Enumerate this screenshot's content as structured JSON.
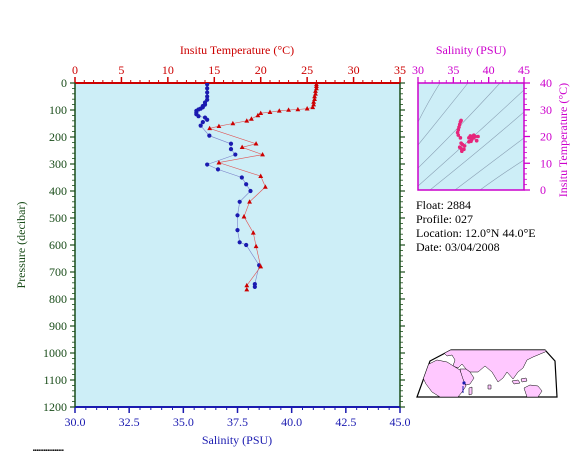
{
  "colors": {
    "temperature": "#cc0000",
    "salinity_main": "#1a1ab0",
    "salinity_ts": "#cc00cc",
    "pressure": "#1a4d1a",
    "plot_bg": "#cdeef7",
    "ts_points": "#e6257a",
    "land": "#ffc8ff"
  },
  "main_chart": {
    "temp_axis_label": "Insitu Temperature (°C)",
    "temp_ticks": [
      "0",
      "5",
      "10",
      "15",
      "20",
      "25",
      "30",
      "35"
    ],
    "sal_axis_label": "Salinity (PSU)",
    "sal_ticks": [
      "30.0",
      "32.5",
      "35.0",
      "37.5",
      "40.0",
      "42.5",
      "45.0"
    ],
    "pres_axis_label": "Pressure (decibar)",
    "pres_ticks": [
      "0",
      "100",
      "200",
      "300",
      "400",
      "500",
      "600",
      "700",
      "800",
      "900",
      "1000",
      "1100",
      "1200"
    ]
  },
  "ts_chart": {
    "sal_axis_label": "Salinity (PSU)",
    "sal_ticks": [
      "30",
      "35",
      "40",
      "45"
    ],
    "temp_axis_label": "Insitu Temperature (°C)",
    "temp_ticks": [
      "0",
      "10",
      "20",
      "30",
      "40"
    ]
  },
  "info": {
    "float_line": "Float:  2884",
    "profile_line": "Profile:  027",
    "location_line": "Location:  12.0°N  44.0°E",
    "date_line": "Date:  03/04/2008"
  },
  "chart_data": [
    {
      "type": "line",
      "name": "temperature-profile",
      "x_axis": "Insitu Temperature (°C)",
      "y_axis": "Pressure (decibar)",
      "xlim": [
        0,
        35
      ],
      "ylim": [
        1200,
        0
      ],
      "points": [
        [
          26.0,
          5
        ],
        [
          26.0,
          12
        ],
        [
          26.0,
          20
        ],
        [
          25.9,
          30
        ],
        [
          25.9,
          40
        ],
        [
          25.8,
          50
        ],
        [
          25.8,
          60
        ],
        [
          25.7,
          70
        ],
        [
          25.7,
          80
        ],
        [
          25.6,
          90
        ],
        [
          25.0,
          95
        ],
        [
          24.0,
          98
        ],
        [
          23.0,
          100
        ],
        [
          22.0,
          103
        ],
        [
          21.0,
          108
        ],
        [
          20.0,
          112
        ],
        [
          19.7,
          120
        ],
        [
          19.0,
          133
        ],
        [
          18.5,
          140
        ],
        [
          17.0,
          150
        ],
        [
          15.5,
          160
        ],
        [
          14.5,
          168
        ],
        [
          19.5,
          225
        ],
        [
          18.0,
          238
        ],
        [
          20.2,
          265
        ],
        [
          15.5,
          295
        ],
        [
          20.0,
          345
        ],
        [
          20.5,
          385
        ],
        [
          18.8,
          440
        ],
        [
          18.2,
          495
        ],
        [
          19.2,
          555
        ],
        [
          19.5,
          605
        ],
        [
          20.0,
          680
        ],
        [
          18.5,
          750
        ],
        [
          18.5,
          765
        ]
      ]
    },
    {
      "type": "scatter",
      "name": "salinity-profile",
      "x_axis": "Salinity (PSU)",
      "y_axis": "Pressure (decibar)",
      "xlim": [
        30,
        45
      ],
      "ylim": [
        1200,
        0
      ],
      "points": [
        [
          36.1,
          5
        ],
        [
          36.1,
          20
        ],
        [
          36.1,
          35
        ],
        [
          36.1,
          50
        ],
        [
          36.1,
          62
        ],
        [
          36.0,
          72
        ],
        [
          36.0,
          80
        ],
        [
          35.9,
          85
        ],
        [
          35.9,
          90
        ],
        [
          35.8,
          95
        ],
        [
          35.7,
          98
        ],
        [
          35.6,
          103
        ],
        [
          35.6,
          110
        ],
        [
          35.6,
          116
        ],
        [
          35.7,
          123
        ],
        [
          36.0,
          128
        ],
        [
          36.1,
          136
        ],
        [
          35.9,
          145
        ],
        [
          35.8,
          158
        ],
        [
          36.2,
          195
        ],
        [
          37.2,
          225
        ],
        [
          37.2,
          245
        ],
        [
          37.4,
          265
        ],
        [
          36.1,
          302
        ],
        [
          36.6,
          320
        ],
        [
          37.7,
          350
        ],
        [
          37.9,
          375
        ],
        [
          38.1,
          400
        ],
        [
          37.6,
          440
        ],
        [
          37.5,
          490
        ],
        [
          37.5,
          545
        ],
        [
          37.6,
          590
        ],
        [
          37.9,
          600
        ],
        [
          38.5,
          675
        ],
        [
          38.3,
          745
        ],
        [
          38.3,
          755
        ]
      ]
    },
    {
      "type": "scatter",
      "name": "ts-diagram",
      "x_axis": "Salinity (PSU)",
      "y_axis": "Insitu Temperature (°C)",
      "xlim": [
        30,
        45
      ],
      "ylim": [
        0,
        40
      ],
      "points": [
        [
          36.1,
          26.0
        ],
        [
          36.0,
          25.5
        ],
        [
          35.9,
          24.5
        ],
        [
          35.8,
          23.5
        ],
        [
          35.7,
          22.5
        ],
        [
          35.6,
          21.5
        ],
        [
          35.7,
          20.5
        ],
        [
          36.0,
          19.5
        ],
        [
          36.1,
          17.5
        ],
        [
          35.9,
          16.0
        ],
        [
          36.2,
          14.5
        ],
        [
          37.2,
          19.5
        ],
        [
          37.2,
          18.0
        ],
        [
          37.4,
          20.2
        ],
        [
          36.1,
          15.5
        ],
        [
          36.6,
          16.5
        ],
        [
          37.7,
          20.0
        ],
        [
          37.9,
          20.5
        ],
        [
          38.1,
          20.0
        ],
        [
          37.6,
          18.8
        ],
        [
          37.5,
          18.2
        ],
        [
          37.6,
          19.2
        ],
        [
          37.9,
          19.5
        ],
        [
          38.5,
          20.0
        ],
        [
          38.3,
          18.5
        ],
        [
          38.3,
          18.4
        ],
        [
          36.3,
          17.0
        ],
        [
          36.5,
          15.2
        ]
      ]
    }
  ]
}
